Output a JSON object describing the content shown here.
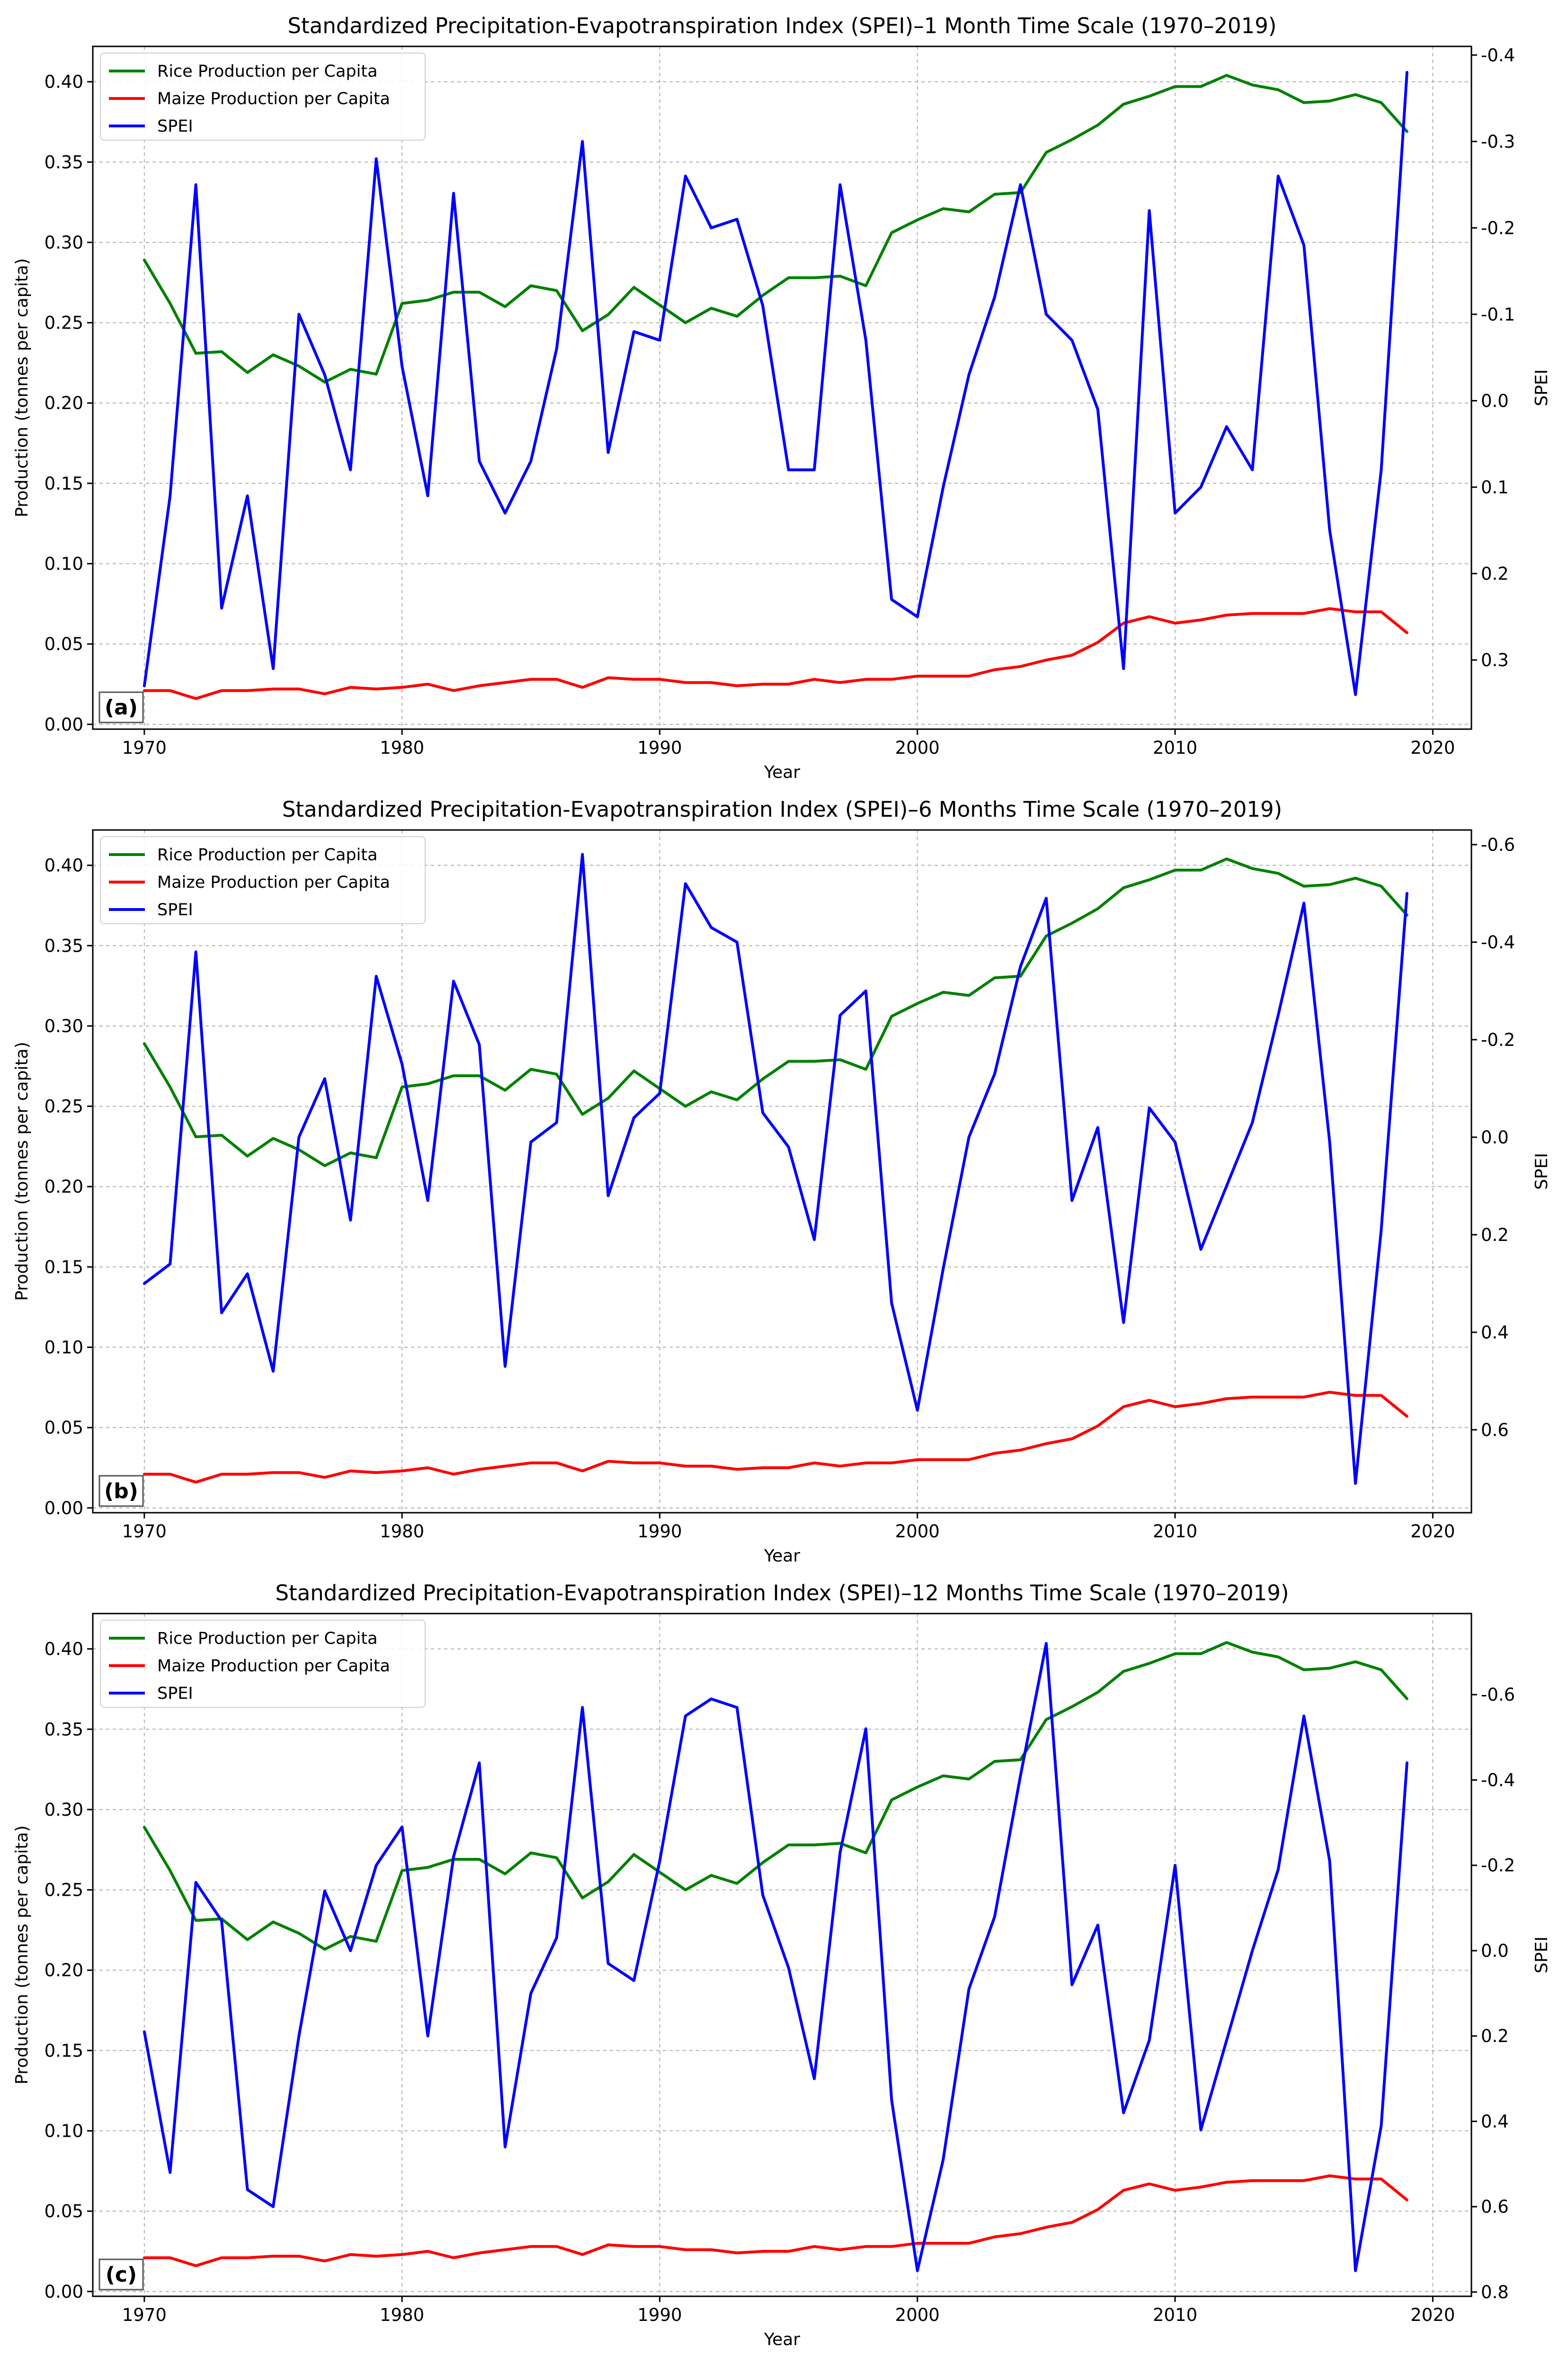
{
  "figure": {
    "background": "#ffffff",
    "grid_color": "#b0b0b0",
    "axis_color": "#000000"
  },
  "chart_data": [
    {
      "type": "line",
      "panel": "(a)",
      "title": "Standardized Precipitation-Evapotranspiration Index (SPEI)–1 Month Time Scale (1970–2019)",
      "xlabel": "Year",
      "ylabel": "Production (tonnes per capita)",
      "ylabel_right": "SPEI",
      "xlim": [
        1968,
        2021.5
      ],
      "ylim": [
        -0.003,
        0.422
      ],
      "ylim_right": [
        0.38,
        -0.41
      ],
      "right_axis_inverted": true,
      "xticks": [
        1970,
        1980,
        1990,
        2000,
        2010,
        2020
      ],
      "yticks": [
        0.0,
        0.05,
        0.1,
        0.15,
        0.2,
        0.25,
        0.3,
        0.35,
        0.4
      ],
      "yticks_right": [
        0.3,
        0.2,
        0.1,
        0.0,
        -0.1,
        -0.2,
        -0.3,
        -0.4
      ],
      "grid": true,
      "legend_position": "upper-left",
      "x": [
        1970,
        1971,
        1972,
        1973,
        1974,
        1975,
        1976,
        1977,
        1978,
        1979,
        1980,
        1981,
        1982,
        1983,
        1984,
        1985,
        1986,
        1987,
        1988,
        1989,
        1990,
        1991,
        1992,
        1993,
        1994,
        1995,
        1996,
        1997,
        1998,
        1999,
        2000,
        2001,
        2002,
        2003,
        2004,
        2005,
        2006,
        2007,
        2008,
        2009,
        2010,
        2011,
        2012,
        2013,
        2014,
        2015,
        2016,
        2017,
        2018,
        2019
      ],
      "series": [
        {
          "name": "Rice Production per Capita",
          "axis": "left",
          "color": "#008000",
          "values": [
            0.289,
            0.262,
            0.231,
            0.232,
            0.219,
            0.23,
            0.223,
            0.213,
            0.221,
            0.218,
            0.262,
            0.264,
            0.269,
            0.269,
            0.26,
            0.273,
            0.27,
            0.245,
            0.255,
            0.272,
            0.261,
            0.25,
            0.259,
            0.254,
            0.267,
            0.278,
            0.278,
            0.279,
            0.273,
            0.306,
            0.314,
            0.321,
            0.319,
            0.33,
            0.331,
            0.356,
            0.364,
            0.373,
            0.386,
            0.391,
            0.397,
            0.397,
            0.404,
            0.398,
            0.395,
            0.387,
            0.388,
            0.392,
            0.387,
            0.369
          ]
        },
        {
          "name": "Maize Production per Capita",
          "axis": "left",
          "color": "#ff0000",
          "values": [
            0.021,
            0.021,
            0.016,
            0.021,
            0.021,
            0.022,
            0.022,
            0.019,
            0.023,
            0.022,
            0.023,
            0.025,
            0.021,
            0.024,
            0.026,
            0.028,
            0.028,
            0.023,
            0.029,
            0.028,
            0.028,
            0.026,
            0.026,
            0.024,
            0.025,
            0.025,
            0.028,
            0.026,
            0.028,
            0.028,
            0.03,
            0.03,
            0.03,
            0.034,
            0.036,
            0.04,
            0.043,
            0.051,
            0.063,
            0.067,
            0.063,
            0.065,
            0.068,
            0.069,
            0.069,
            0.069,
            0.072,
            0.07,
            0.07,
            0.057
          ]
        },
        {
          "name": "SPEI",
          "axis": "right",
          "color": "#0000ff",
          "values": [
            0.33,
            0.11,
            -0.25,
            0.24,
            0.11,
            0.31,
            -0.1,
            -0.03,
            0.08,
            -0.28,
            -0.04,
            0.11,
            -0.24,
            0.07,
            0.13,
            0.07,
            -0.06,
            -0.3,
            0.06,
            -0.08,
            -0.07,
            -0.26,
            -0.2,
            -0.21,
            -0.11,
            0.08,
            0.08,
            -0.25,
            -0.07,
            0.23,
            0.25,
            0.1,
            -0.03,
            -0.12,
            -0.25,
            -0.1,
            -0.07,
            0.01,
            0.31,
            -0.22,
            0.13,
            0.1,
            0.03,
            0.08,
            -0.26,
            -0.18,
            0.15,
            0.34,
            0.08,
            -0.38
          ]
        }
      ]
    },
    {
      "type": "line",
      "panel": "(b)",
      "title": "Standardized Precipitation-Evapotranspiration Index (SPEI)–6 Months Time Scale (1970–2019)",
      "xlabel": "Year",
      "ylabel": "Production (tonnes per capita)",
      "ylabel_right": "SPEI",
      "xlim": [
        1968,
        2021.5
      ],
      "ylim": [
        -0.003,
        0.422
      ],
      "ylim_right": [
        0.77,
        -0.63
      ],
      "right_axis_inverted": true,
      "xticks": [
        1970,
        1980,
        1990,
        2000,
        2010,
        2020
      ],
      "yticks": [
        0.0,
        0.05,
        0.1,
        0.15,
        0.2,
        0.25,
        0.3,
        0.35,
        0.4
      ],
      "yticks_right": [
        0.6,
        0.4,
        0.2,
        0.0,
        -0.2,
        -0.4,
        -0.6
      ],
      "grid": true,
      "legend_position": "upper-left",
      "x": [
        1970,
        1971,
        1972,
        1973,
        1974,
        1975,
        1976,
        1977,
        1978,
        1979,
        1980,
        1981,
        1982,
        1983,
        1984,
        1985,
        1986,
        1987,
        1988,
        1989,
        1990,
        1991,
        1992,
        1993,
        1994,
        1995,
        1996,
        1997,
        1998,
        1999,
        2000,
        2001,
        2002,
        2003,
        2004,
        2005,
        2006,
        2007,
        2008,
        2009,
        2010,
        2011,
        2012,
        2013,
        2014,
        2015,
        2016,
        2017,
        2018,
        2019
      ],
      "series": [
        {
          "name": "Rice Production per Capita",
          "axis": "left",
          "color": "#008000",
          "values": [
            0.289,
            0.262,
            0.231,
            0.232,
            0.219,
            0.23,
            0.223,
            0.213,
            0.221,
            0.218,
            0.262,
            0.264,
            0.269,
            0.269,
            0.26,
            0.273,
            0.27,
            0.245,
            0.255,
            0.272,
            0.261,
            0.25,
            0.259,
            0.254,
            0.267,
            0.278,
            0.278,
            0.279,
            0.273,
            0.306,
            0.314,
            0.321,
            0.319,
            0.33,
            0.331,
            0.356,
            0.364,
            0.373,
            0.386,
            0.391,
            0.397,
            0.397,
            0.404,
            0.398,
            0.395,
            0.387,
            0.388,
            0.392,
            0.387,
            0.369
          ]
        },
        {
          "name": "Maize Production per Capita",
          "axis": "left",
          "color": "#ff0000",
          "values": [
            0.021,
            0.021,
            0.016,
            0.021,
            0.021,
            0.022,
            0.022,
            0.019,
            0.023,
            0.022,
            0.023,
            0.025,
            0.021,
            0.024,
            0.026,
            0.028,
            0.028,
            0.023,
            0.029,
            0.028,
            0.028,
            0.026,
            0.026,
            0.024,
            0.025,
            0.025,
            0.028,
            0.026,
            0.028,
            0.028,
            0.03,
            0.03,
            0.03,
            0.034,
            0.036,
            0.04,
            0.043,
            0.051,
            0.063,
            0.067,
            0.063,
            0.065,
            0.068,
            0.069,
            0.069,
            0.069,
            0.072,
            0.07,
            0.07,
            0.057
          ]
        },
        {
          "name": "SPEI",
          "axis": "right",
          "color": "#0000ff",
          "values": [
            0.3,
            0.26,
            -0.38,
            0.36,
            0.28,
            0.48,
            0.0,
            -0.12,
            0.17,
            -0.33,
            -0.15,
            0.13,
            -0.32,
            -0.19,
            0.47,
            0.01,
            -0.03,
            -0.58,
            0.12,
            -0.04,
            -0.09,
            -0.52,
            -0.43,
            -0.4,
            -0.05,
            0.02,
            0.21,
            -0.25,
            -0.3,
            0.34,
            0.56,
            0.27,
            0.0,
            -0.13,
            -0.35,
            -0.49,
            0.13,
            -0.02,
            0.38,
            -0.06,
            0.01,
            0.23,
            0.1,
            -0.03,
            -0.25,
            -0.48,
            0.01,
            0.71,
            0.19,
            -0.5
          ]
        }
      ]
    },
    {
      "type": "line",
      "panel": "(c)",
      "title": "Standardized Precipitation-Evapotranspiration Index (SPEI)–12 Months Time Scale (1970–2019)",
      "xlabel": "Year",
      "ylabel": "Production (tonnes per capita)",
      "ylabel_right": "SPEI",
      "xlim": [
        1968,
        2021.5
      ],
      "ylim": [
        -0.003,
        0.422
      ],
      "ylim_right": [
        0.81,
        -0.79
      ],
      "right_axis_inverted": true,
      "xticks": [
        1970,
        1980,
        1990,
        2000,
        2010,
        2020
      ],
      "yticks": [
        0.0,
        0.05,
        0.1,
        0.15,
        0.2,
        0.25,
        0.3,
        0.35,
        0.4
      ],
      "yticks_right": [
        0.8,
        0.6,
        0.4,
        0.2,
        0.0,
        -0.2,
        -0.4,
        -0.6
      ],
      "grid": true,
      "legend_position": "upper-left",
      "x": [
        1970,
        1971,
        1972,
        1973,
        1974,
        1975,
        1976,
        1977,
        1978,
        1979,
        1980,
        1981,
        1982,
        1983,
        1984,
        1985,
        1986,
        1987,
        1988,
        1989,
        1990,
        1991,
        1992,
        1993,
        1994,
        1995,
        1996,
        1997,
        1998,
        1999,
        2000,
        2001,
        2002,
        2003,
        2004,
        2005,
        2006,
        2007,
        2008,
        2009,
        2010,
        2011,
        2012,
        2013,
        2014,
        2015,
        2016,
        2017,
        2018,
        2019
      ],
      "series": [
        {
          "name": "Rice Production per Capita",
          "axis": "left",
          "color": "#008000",
          "values": [
            0.289,
            0.262,
            0.231,
            0.232,
            0.219,
            0.23,
            0.223,
            0.213,
            0.221,
            0.218,
            0.262,
            0.264,
            0.269,
            0.269,
            0.26,
            0.273,
            0.27,
            0.245,
            0.255,
            0.272,
            0.261,
            0.25,
            0.259,
            0.254,
            0.267,
            0.278,
            0.278,
            0.279,
            0.273,
            0.306,
            0.314,
            0.321,
            0.319,
            0.33,
            0.331,
            0.356,
            0.364,
            0.373,
            0.386,
            0.391,
            0.397,
            0.397,
            0.404,
            0.398,
            0.395,
            0.387,
            0.388,
            0.392,
            0.387,
            0.369
          ]
        },
        {
          "name": "Maize Production per Capita",
          "axis": "left",
          "color": "#ff0000",
          "values": [
            0.021,
            0.021,
            0.016,
            0.021,
            0.021,
            0.022,
            0.022,
            0.019,
            0.023,
            0.022,
            0.023,
            0.025,
            0.021,
            0.024,
            0.026,
            0.028,
            0.028,
            0.023,
            0.029,
            0.028,
            0.028,
            0.026,
            0.026,
            0.024,
            0.025,
            0.025,
            0.028,
            0.026,
            0.028,
            0.028,
            0.03,
            0.03,
            0.03,
            0.034,
            0.036,
            0.04,
            0.043,
            0.051,
            0.063,
            0.067,
            0.063,
            0.065,
            0.068,
            0.069,
            0.069,
            0.069,
            0.072,
            0.07,
            0.07,
            0.057
          ]
        },
        {
          "name": "SPEI",
          "axis": "right",
          "color": "#0000ff",
          "values": [
            0.19,
            0.52,
            -0.16,
            -0.07,
            0.56,
            0.6,
            0.2,
            -0.14,
            0.0,
            -0.2,
            -0.29,
            0.2,
            -0.22,
            -0.44,
            0.46,
            0.1,
            -0.03,
            -0.57,
            0.03,
            0.07,
            -0.21,
            -0.55,
            -0.59,
            -0.57,
            -0.13,
            0.04,
            0.3,
            -0.23,
            -0.52,
            0.35,
            0.75,
            0.49,
            0.09,
            -0.08,
            -0.41,
            -0.72,
            0.08,
            -0.06,
            0.38,
            0.21,
            -0.2,
            0.42,
            0.21,
            0.0,
            -0.19,
            -0.55,
            -0.21,
            0.75,
            0.41,
            -0.44
          ]
        }
      ]
    }
  ]
}
